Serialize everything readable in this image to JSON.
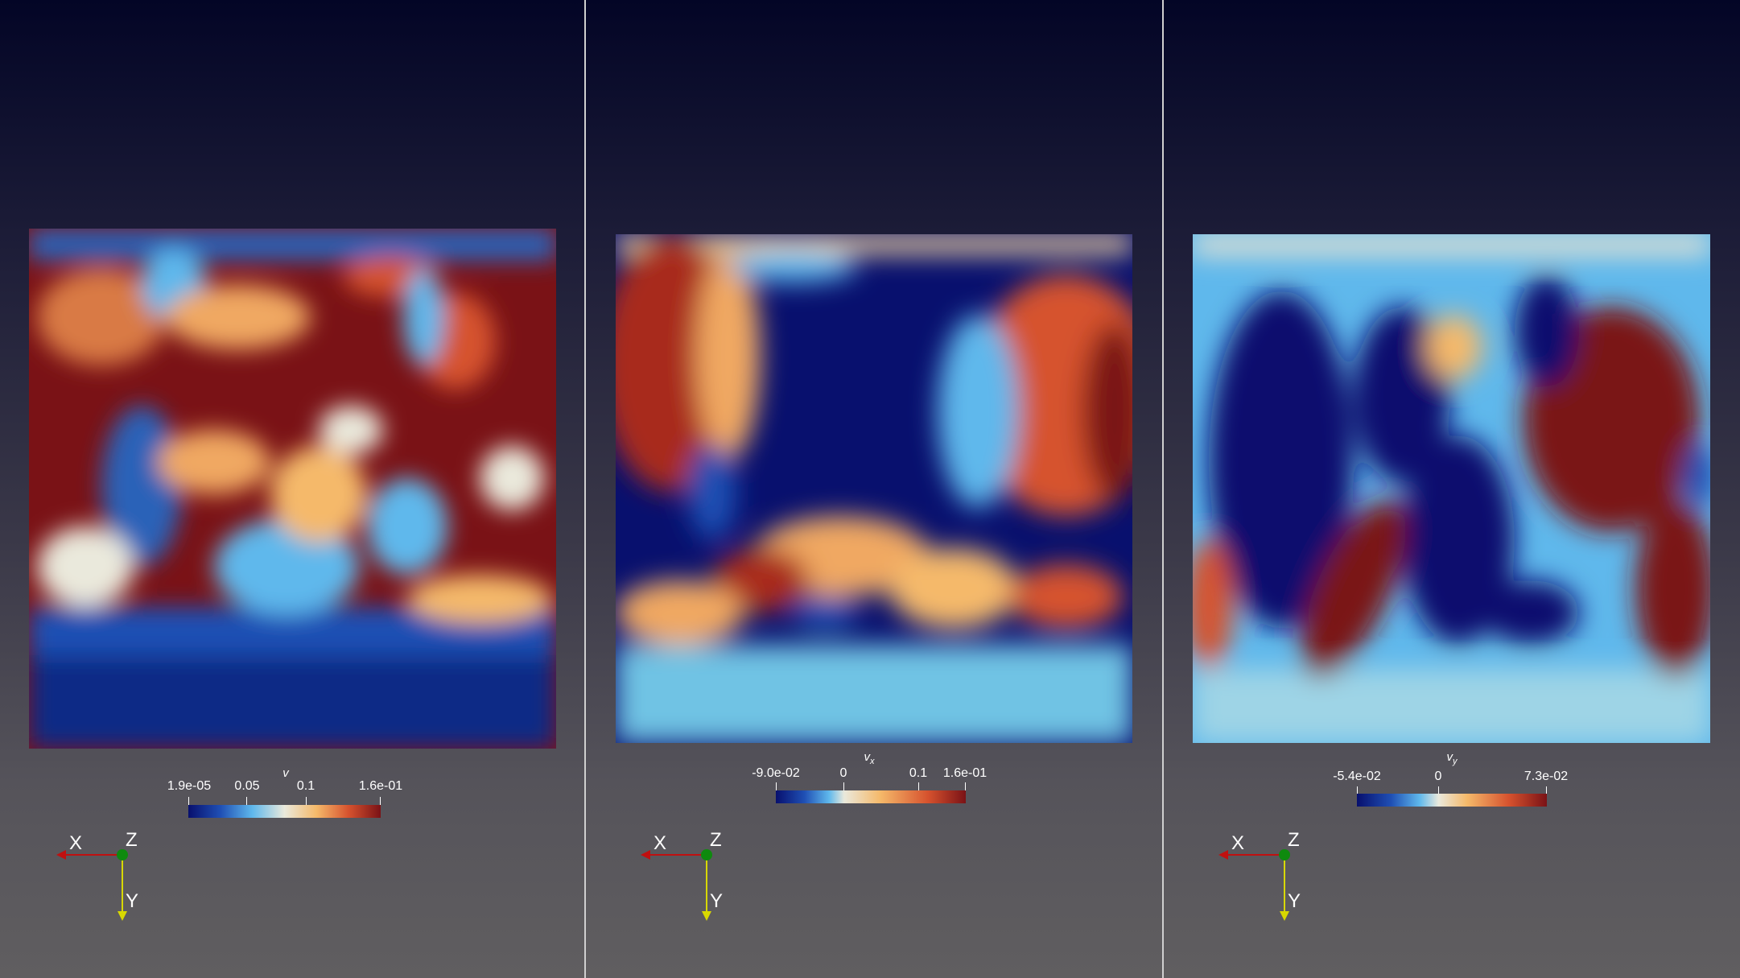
{
  "colormap": {
    "stops": [
      "#08106e",
      "#1f4fb4",
      "#5fb8ec",
      "#eae9dc",
      "#f5b96a",
      "#d6522e",
      "#7a1216"
    ]
  },
  "panels": [
    {
      "id": "v",
      "colorbar": {
        "title": "v",
        "subscript": "",
        "ticks": [
          "1.9e-05",
          "0.05",
          "0.1",
          "1.6e-01"
        ]
      },
      "axes": {
        "x": "X",
        "y": "Y",
        "z": "Z"
      }
    },
    {
      "id": "vx",
      "colorbar": {
        "title": "v",
        "subscript": "x",
        "ticks": [
          "-9.0e-02",
          "0",
          "0.1",
          "1.6e-01"
        ]
      },
      "axes": {
        "x": "X",
        "y": "Y",
        "z": "Z"
      }
    },
    {
      "id": "vy",
      "colorbar": {
        "title": "v",
        "subscript": "y",
        "ticks": [
          "-5.4e-02",
          "0",
          "7.3e-02"
        ]
      },
      "axes": {
        "x": "X",
        "y": "Y",
        "z": "Z"
      }
    }
  ]
}
